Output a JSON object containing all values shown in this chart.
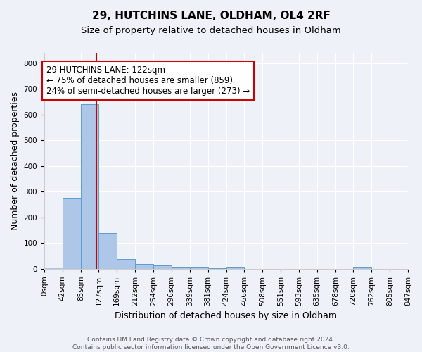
{
  "title": "29, HUTCHINS LANE, OLDHAM, OL4 2RF",
  "subtitle": "Size of property relative to detached houses in Oldham",
  "xlabel": "Distribution of detached houses by size in Oldham",
  "ylabel": "Number of detached properties",
  "bin_labels": [
    "0sqm",
    "42sqm",
    "85sqm",
    "127sqm",
    "169sqm",
    "212sqm",
    "254sqm",
    "296sqm",
    "339sqm",
    "381sqm",
    "424sqm",
    "466sqm",
    "508sqm",
    "551sqm",
    "593sqm",
    "635sqm",
    "678sqm",
    "720sqm",
    "762sqm",
    "805sqm",
    "847sqm"
  ],
  "bin_edges": [
    0,
    42,
    85,
    127,
    169,
    212,
    254,
    296,
    339,
    381,
    424,
    466,
    508,
    551,
    593,
    635,
    678,
    720,
    762,
    805,
    847
  ],
  "bar_values": [
    5,
    275,
    640,
    140,
    37,
    20,
    13,
    8,
    8,
    3,
    8,
    0,
    0,
    0,
    0,
    0,
    0,
    8,
    0,
    0,
    3
  ],
  "bar_color": "#aec6e8",
  "bar_edge_color": "#5a9ed1",
  "red_line_x": 122,
  "annotation_line1": "29 HUTCHINS LANE: 122sqm",
  "annotation_line2": "← 75% of detached houses are smaller (859)",
  "annotation_line3": "24% of semi-detached houses are larger (273) →",
  "annotation_box_color": "#ffffff",
  "annotation_box_edge_color": "#cc0000",
  "ylim": [
    0,
    840
  ],
  "yticks": [
    0,
    100,
    200,
    300,
    400,
    500,
    600,
    700,
    800
  ],
  "footer1": "Contains HM Land Registry data © Crown copyright and database right 2024.",
  "footer2": "Contains public sector information licensed under the Open Government Licence v3.0.",
  "background_color": "#eef2f8",
  "grid_color": "#ffffff",
  "title_fontsize": 11,
  "subtitle_fontsize": 9.5,
  "axis_label_fontsize": 9,
  "tick_fontsize": 7.5,
  "annotation_fontsize": 8.5,
  "footer_fontsize": 6.5
}
